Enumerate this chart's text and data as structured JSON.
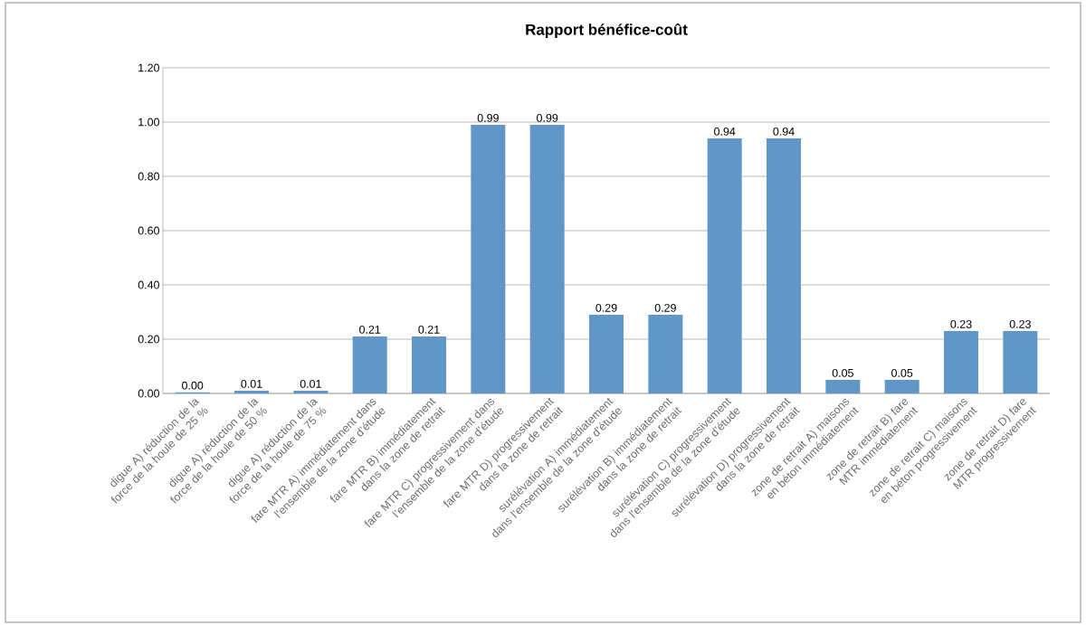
{
  "chart_data": {
    "type": "bar",
    "title": "Rapport bénéfice-coût",
    "categories": [
      "digue A) réduction de la force de la houle de 25 %",
      "digue A) réduction de la force de la houle de 50 %",
      "digue A) réduction de la force de la houle de 75 %",
      "fare MTR A) immédiatement dans l’ensemble de la zone d’étude",
      "fare MTR B) immédiatement dans la zone de retrait",
      "fare MTR C) progressivement dans l’ensemble de la zone d’étude",
      "fare MTR D) progressivement dans la zone de retrait",
      "surélévation A) immédiatement dans l’ensemble de la zone d’étude",
      "surélévation B) immédiatement dans la zone de retrait",
      "surélévation C) progressivement dans l’ensemble de la zone d’étude",
      "surélévation D) progressivement dans la zone de retrait",
      "zone de retrait A) maisons en béton immédiatement",
      "zone de retrait B) fare MTR immédiatement",
      "zone de retrait C) maisons en béton progressivement",
      "zone de retrait D) fare MTR progressivement"
    ],
    "values": [
      0.004,
      0.01,
      0.01,
      0.21,
      0.21,
      0.99,
      0.99,
      0.29,
      0.29,
      0.94,
      0.94,
      0.05,
      0.05,
      0.23,
      0.23
    ],
    "value_labels": [
      "0.00",
      "0.01",
      "0.01",
      "0.21",
      "0.21",
      "0.99",
      "0.99",
      "0.29",
      "0.29",
      "0.94",
      "0.94",
      "0.05",
      "0.05",
      "0.23",
      "0.23"
    ],
    "color": "#6096c8",
    "ylim": [
      0,
      1.2
    ],
    "yticks": [
      {
        "value": 0,
        "label": "0.00"
      },
      {
        "value": 0.2,
        "label": "0.20"
      },
      {
        "value": 0.4,
        "label": "0.40"
      },
      {
        "value": 0.6,
        "label": "0.60"
      },
      {
        "value": 0.8,
        "label": "0.80"
      },
      {
        "value": 1.0,
        "label": "1.00"
      },
      {
        "value": 1.2,
        "label": "1.20"
      }
    ],
    "grid": "y"
  }
}
